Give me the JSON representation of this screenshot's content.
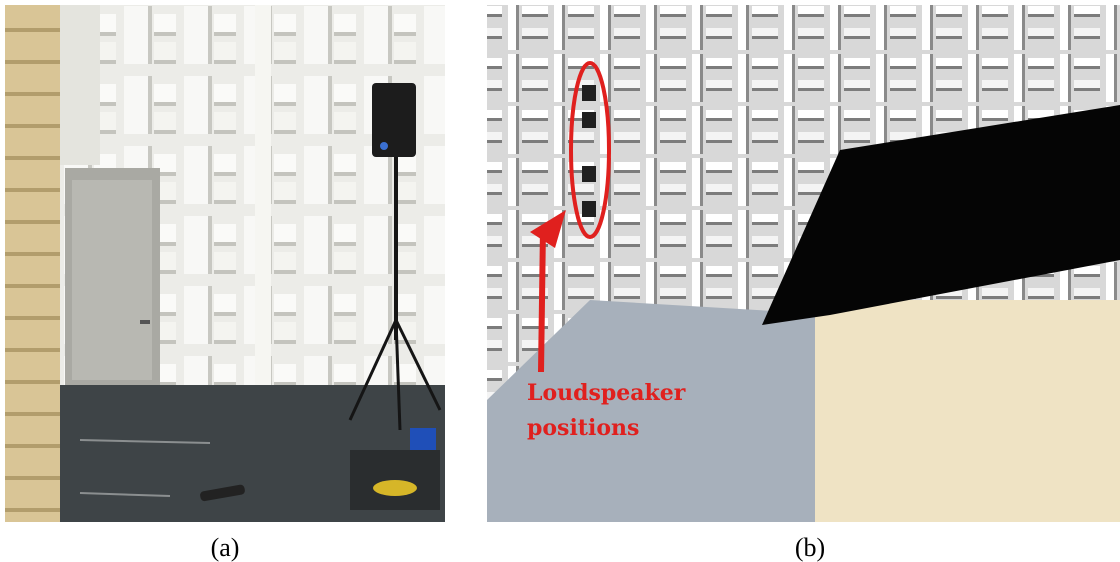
{
  "panels": [
    {
      "caption": "(a)"
    },
    {
      "caption": "(b)",
      "annotation": [
        "Loudspeaker",
        "positions"
      ]
    }
  ]
}
